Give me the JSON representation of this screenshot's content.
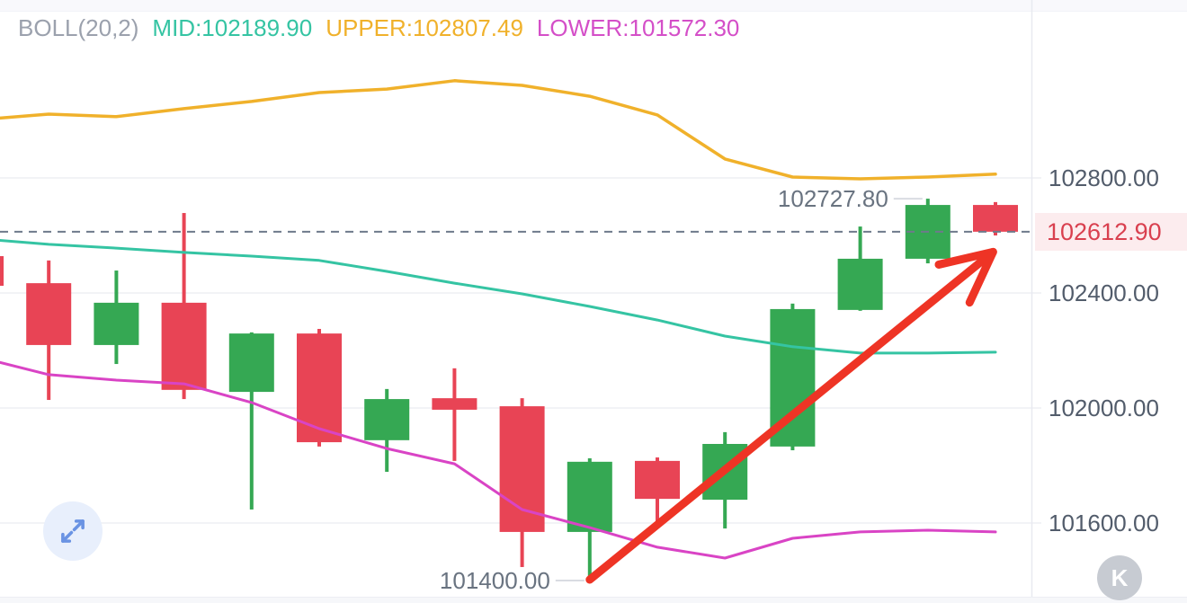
{
  "header": {
    "indicator": "BOLL(20,2)",
    "mid": "MID:102189.90",
    "upper": "UPPER:102807.49",
    "lower": "LOWER:101572.30"
  },
  "y_axis": {
    "labels": [
      {
        "text": "102800.00",
        "value": 102800
      },
      {
        "text": "102400.00",
        "value": 102400
      },
      {
        "text": "102000.00",
        "value": 102000
      },
      {
        "text": "101600.00",
        "value": 101600
      }
    ],
    "current": {
      "text": "102612.90",
      "value": 102612.9
    }
  },
  "annotations": {
    "high": {
      "text": "102727.80",
      "value": 102727.8,
      "candle_index": 14
    },
    "low": {
      "text": "101400.00",
      "value": 101400.0,
      "candle_index": 9
    },
    "arrow": {
      "from_index": 9,
      "from_price": 101403,
      "to_index": 14.82,
      "to_price": 102515
    }
  },
  "chart_data": {
    "type": "candlestick",
    "indicator": {
      "name": "BOLL",
      "params": [
        20,
        2
      ],
      "mid": 102189.9,
      "upper": 102807.49,
      "lower": 101572.3
    },
    "visible_price_range": [
      101340,
      103420
    ],
    "grid_values": [
      102800,
      102400,
      102000,
      101600
    ],
    "current_price": 102612.9,
    "candles": [
      {
        "o": 102528.0,
        "h": 102528.0,
        "l": 102425.0,
        "c": 102425.0
      },
      {
        "o": 102434.0,
        "h": 102513.0,
        "l": 102028.0,
        "c": 102219.0
      },
      {
        "o": 102219.0,
        "h": 102478.0,
        "l": 102153.0,
        "c": 102366.0
      },
      {
        "o": 102366.0,
        "h": 102678.0,
        "l": 102031.0,
        "c": 102063.0
      },
      {
        "o": 102056.0,
        "h": 102263.0,
        "l": 101647.0,
        "c": 102259.0
      },
      {
        "o": 102259.0,
        "h": 102275.0,
        "l": 101866.0,
        "c": 101881.0
      },
      {
        "o": 101888.0,
        "h": 102066.0,
        "l": 101778.0,
        "c": 102031.0
      },
      {
        "o": 102034.0,
        "h": 102138.0,
        "l": 101816.0,
        "c": 101994.0
      },
      {
        "o": 102006.0,
        "h": 102034.0,
        "l": 101447.0,
        "c": 101569.0
      },
      {
        "o": 101569.0,
        "h": 101825.0,
        "l": 101400.0,
        "c": 101813.0
      },
      {
        "o": 101816.0,
        "h": 101828.0,
        "l": 101591.0,
        "c": 101684.0
      },
      {
        "o": 101681.0,
        "h": 101916.0,
        "l": 101581.0,
        "c": 101875.0
      },
      {
        "o": 101866.0,
        "h": 102363.0,
        "l": 101853.0,
        "c": 102344.0
      },
      {
        "o": 102341.0,
        "h": 102631.0,
        "l": 102338.0,
        "c": 102519.0
      },
      {
        "o": 102519.0,
        "h": 102727.8,
        "l": 102503.0,
        "c": 102706.0
      },
      {
        "o": 102706.0,
        "h": 102716.0,
        "l": 102600.0,
        "c": 102612.9
      }
    ],
    "bands": {
      "upper": [
        103003,
        103022,
        103013,
        103041,
        103066,
        103097,
        103109,
        103138,
        103122,
        103084,
        103019,
        102866,
        102803,
        102797,
        102803,
        102813
      ],
      "mid": [
        102588,
        102569,
        102556,
        102541,
        102528,
        102513,
        102475,
        102434,
        102397,
        102353,
        102306,
        102250,
        102213,
        102191,
        102191,
        102194
      ],
      "lower": [
        102175,
        102116,
        102097,
        102084,
        102019,
        101928,
        101859,
        101806,
        101647,
        101584,
        101516,
        101478,
        101547,
        101569,
        101575,
        101569
      ]
    }
  },
  "buttons": {
    "fullscreen_icon": "expand-icon",
    "kline": {
      "label": "K",
      "icon": "kline-icon"
    }
  },
  "colors": {
    "candle_up": "#35a853",
    "candle_down": "#e84455",
    "band_mid": "#35c4a3",
    "band_upper": "#f0b12b",
    "band_lower": "#d944c5",
    "arrow_red": "#ee3425",
    "dashed_line": "#6e7a8b",
    "gridline": "#edeff4",
    "axis_line": "#e8eaf0",
    "axis_text": "#525c6b",
    "annotation_text": "#697380",
    "indicator_gray": "#9ba1ad",
    "badge_bg": "#fcecee",
    "badge_text": "#d9404f",
    "icon_blue": "#6a93e3",
    "icon_circle_bg": "#e8effc",
    "kline_circle_bg": "#c7cbd2"
  }
}
